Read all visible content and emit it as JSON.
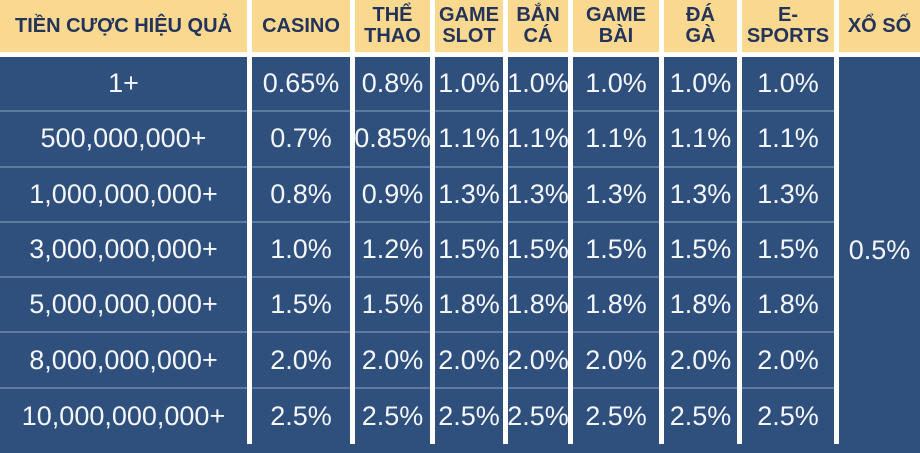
{
  "chart_data": {
    "type": "table",
    "title": "",
    "columns": [
      "TIỀN CƯỢC HIỆU QUẢ",
      "CASINO",
      "THỂ THAO",
      "GAME SLOT",
      "BẮN CÁ",
      "GAME BÀI",
      "ĐÁ GÀ",
      "E-SPORTS",
      "XỔ SỐ"
    ],
    "header_display": [
      "TIỀN CƯỢC HIỆU QUẢ",
      "CASINO",
      "THỂ\nTHAO",
      "GAME\nSLOT",
      "BẮN\nCÁ",
      "GAME\nBÀI",
      "ĐÁ\nGÀ",
      "E-\nSPORTS",
      "XỔ SỐ"
    ],
    "rows": [
      {
        "label": "1+",
        "values": [
          "0.65%",
          "0.8%",
          "1.0%",
          "1.0%",
          "1.0%",
          "1.0%",
          "1.0%"
        ]
      },
      {
        "label": "500,000,000+",
        "values": [
          "0.7%",
          "0.85%",
          "1.1%",
          "1.1%",
          "1.1%",
          "1.1%",
          "1.1%"
        ]
      },
      {
        "label": "1,000,000,000+",
        "values": [
          "0.8%",
          "0.9%",
          "1.3%",
          "1.3%",
          "1.3%",
          "1.3%",
          "1.3%"
        ]
      },
      {
        "label": "3,000,000,000+",
        "values": [
          "1.0%",
          "1.2%",
          "1.5%",
          "1.5%",
          "1.5%",
          "1.5%",
          "1.5%"
        ]
      },
      {
        "label": "5,000,000,000+",
        "values": [
          "1.5%",
          "1.5%",
          "1.8%",
          "1.8%",
          "1.8%",
          "1.8%",
          "1.8%"
        ]
      },
      {
        "label": "8,000,000,000+",
        "values": [
          "2.0%",
          "2.0%",
          "2.0%",
          "2.0%",
          "2.0%",
          "2.0%",
          "2.0%"
        ]
      },
      {
        "label": "10,000,000,000+",
        "values": [
          "2.5%",
          "2.5%",
          "2.5%",
          "2.5%",
          "2.5%",
          "2.5%",
          "2.5%"
        ]
      }
    ],
    "lottery": {
      "header": "XỔ SỐ",
      "value": "0.5%",
      "rowspan": 7
    },
    "layout": {
      "legend": "none",
      "grid": "white column gaps, light-blue row separators",
      "merged_last_column": true
    }
  },
  "colors": {
    "header_background": "#f9d98f",
    "header_text": "#24335a",
    "cell_background": "#2f4f7d",
    "cell_text": "#f3f6fa",
    "row_separator": "#5e7aa2",
    "column_gap": "#ffffff"
  }
}
